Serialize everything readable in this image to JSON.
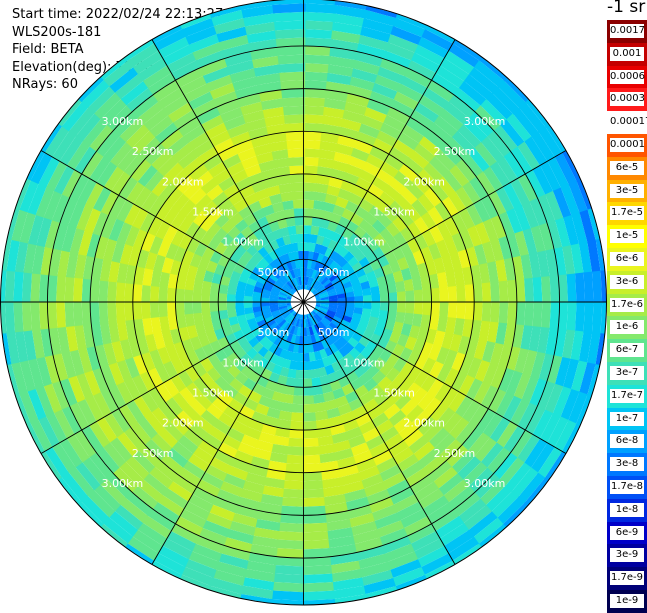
{
  "header": {
    "start_time": "Start time: 2022/02/24 22:13:27",
    "instrument": "WLS200s-181",
    "field": "Field: BETA",
    "elevation": "Elevation(deg): 75.00",
    "nrays": "NRays: 60"
  },
  "chart_data": {
    "type": "heatmap",
    "projection": "polar-ppi",
    "field": "BETA",
    "elevation_deg": 75.0,
    "n_rays": 60,
    "range_rings": [
      {
        "label": "500m"
      },
      {
        "label": "1.00km"
      },
      {
        "label": "1.50km"
      },
      {
        "label": "2.00km"
      },
      {
        "label": "2.50km"
      },
      {
        "label": "3.00km"
      }
    ],
    "ring_ranges_m": [
      500,
      1000,
      1500,
      2000,
      2500,
      3000
    ],
    "max_range_m": 3550,
    "spokes_deg": [
      0,
      30,
      60,
      90,
      120,
      150,
      180,
      210,
      240,
      270,
      300,
      330
    ],
    "colorbar": {
      "title": "-1 sr",
      "entries": [
        {
          "label": "0.0017",
          "color": "#8b0000"
        },
        {
          "label": "0.001",
          "color": "#c40000"
        },
        {
          "label": "0.0006",
          "color": "#e80000"
        },
        {
          "label": "0.0003",
          "color": "#ff1a1a"
        },
        {
          "label": "0.00017",
          "color": "#ffffff"
        },
        {
          "label": "0.0001",
          "color": "#ff5500"
        },
        {
          "label": "6e-5",
          "color": "#ff8800"
        },
        {
          "label": "3e-5",
          "color": "#ffb000"
        },
        {
          "label": "1.7e-5",
          "color": "#ffd700"
        },
        {
          "label": "1e-5",
          "color": "#ffff00"
        },
        {
          "label": "6e-6",
          "color": "#eaf51f"
        },
        {
          "label": "3e-6",
          "color": "#c8ef2a"
        },
        {
          "label": "1.7e-6",
          "color": "#a6ec48"
        },
        {
          "label": "1e-6",
          "color": "#84e96c"
        },
        {
          "label": "6e-7",
          "color": "#5fe58f"
        },
        {
          "label": "3e-7",
          "color": "#3ee0b8"
        },
        {
          "label": "1.7e-7",
          "color": "#1ee3d8"
        },
        {
          "label": "1e-7",
          "color": "#00c4f5"
        },
        {
          "label": "6e-8",
          "color": "#00a0ff"
        },
        {
          "label": "3e-8",
          "color": "#0078ff"
        },
        {
          "label": "1.7e-8",
          "color": "#0050f5"
        },
        {
          "label": "1e-8",
          "color": "#0028e0"
        },
        {
          "label": "6e-9",
          "color": "#0000c8"
        },
        {
          "label": "3e-9",
          "color": "#0000a0"
        },
        {
          "label": "1.7e-9",
          "color": "#000078"
        },
        {
          "label": "1e-9",
          "color": "#000050"
        }
      ]
    },
    "range_profile": [
      {
        "range_m": 0,
        "value": null
      },
      {
        "range_m": 150,
        "value": "6e-8"
      },
      {
        "range_m": 500,
        "value": "6e-8"
      },
      {
        "range_m": 750,
        "value": "1.7e-7"
      },
      {
        "range_m": 1000,
        "value": "6e-7"
      },
      {
        "range_m": 1500,
        "value": "3e-6"
      },
      {
        "range_m": 2000,
        "value": "3e-6"
      },
      {
        "range_m": 2500,
        "value": "1e-6"
      },
      {
        "range_m": 3000,
        "value": "6e-7"
      },
      {
        "range_m": 3550,
        "value": "1e-7"
      }
    ]
  }
}
